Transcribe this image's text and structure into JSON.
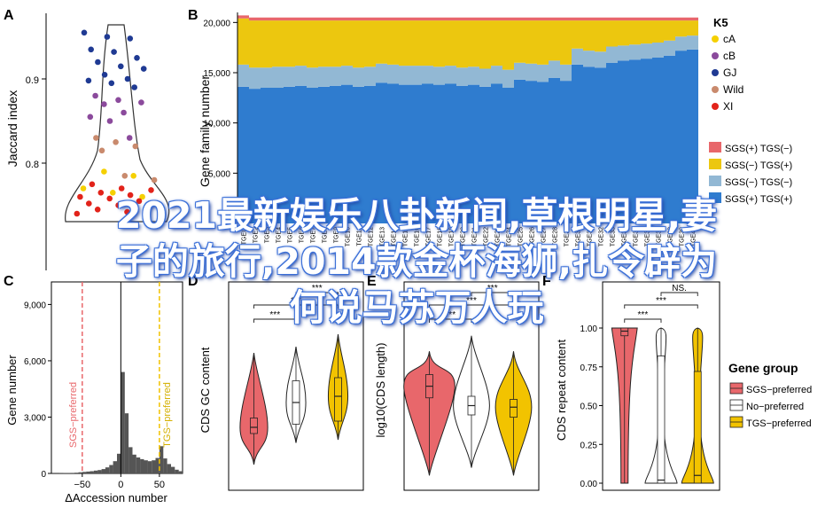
{
  "colors": {
    "blue_dark": "#1f3a93",
    "purple": "#8b4a9c",
    "yellow": "#f5d000",
    "tan": "#c98a6d",
    "red": "#e2231a",
    "sgs": "#e8676b",
    "tgs": "#f2c300",
    "area_yellow": "#ecc70f",
    "area_light": "#92b8d4",
    "area_blue": "#2f7ccf",
    "area_pink": "#e8676b",
    "hist": "#555555"
  },
  "overlay": {
    "line1": "2021最新娱乐八卦新闻,草根明星,妻",
    "line2": "子的旅行,2014款金杯海狮,扎令辟为",
    "line3": "何说马苏万人玩"
  },
  "chart_data": [
    {
      "panel": "A",
      "type": "scatter",
      "ylabel": "Jaccard index",
      "yticks": [
        "0.8",
        "0.9"
      ],
      "legend_title": "K5",
      "legend": [
        {
          "name": "cA",
          "color": "#f5d000"
        },
        {
          "name": "cB",
          "color": "#8b4a9c"
        },
        {
          "name": "GJ",
          "color": "#1f3a93"
        },
        {
          "name": "Wild",
          "color": "#c98a6d"
        },
        {
          "name": "XI",
          "color": "#e2231a"
        }
      ],
      "points": [
        {
          "y": 0.955,
          "g": "GJ"
        },
        {
          "y": 0.95,
          "g": "GJ"
        },
        {
          "y": 0.948,
          "g": "GJ"
        },
        {
          "y": 0.935,
          "g": "GJ"
        },
        {
          "y": 0.932,
          "g": "GJ"
        },
        {
          "y": 0.925,
          "g": "GJ"
        },
        {
          "y": 0.92,
          "g": "GJ"
        },
        {
          "y": 0.915,
          "g": "GJ"
        },
        {
          "y": 0.912,
          "g": "GJ"
        },
        {
          "y": 0.905,
          "g": "GJ"
        },
        {
          "y": 0.9,
          "g": "GJ"
        },
        {
          "y": 0.898,
          "g": "GJ"
        },
        {
          "y": 0.895,
          "g": "GJ"
        },
        {
          "y": 0.89,
          "g": "GJ"
        },
        {
          "y": 0.88,
          "g": "cB"
        },
        {
          "y": 0.875,
          "g": "cB"
        },
        {
          "y": 0.872,
          "g": "cB"
        },
        {
          "y": 0.87,
          "g": "cB"
        },
        {
          "y": 0.86,
          "g": "cB"
        },
        {
          "y": 0.855,
          "g": "cB"
        },
        {
          "y": 0.85,
          "g": "cB"
        },
        {
          "y": 0.83,
          "g": "cB"
        },
        {
          "y": 0.83,
          "g": "Wild"
        },
        {
          "y": 0.825,
          "g": "Wild"
        },
        {
          "y": 0.82,
          "g": "Wild"
        },
        {
          "y": 0.815,
          "g": "Wild"
        },
        {
          "y": 0.785,
          "g": "Wild"
        },
        {
          "y": 0.78,
          "g": "Wild"
        },
        {
          "y": 0.79,
          "g": "cA"
        },
        {
          "y": 0.785,
          "g": "cA"
        },
        {
          "y": 0.77,
          "g": "cA"
        },
        {
          "y": 0.765,
          "g": "cA"
        },
        {
          "y": 0.76,
          "g": "cA"
        },
        {
          "y": 0.775,
          "g": "XI"
        },
        {
          "y": 0.77,
          "g": "XI"
        },
        {
          "y": 0.768,
          "g": "XI"
        },
        {
          "y": 0.765,
          "g": "XI"
        },
        {
          "y": 0.762,
          "g": "XI"
        },
        {
          "y": 0.76,
          "g": "XI"
        },
        {
          "y": 0.758,
          "g": "XI"
        },
        {
          "y": 0.755,
          "g": "XI"
        },
        {
          "y": 0.752,
          "g": "XI"
        },
        {
          "y": 0.75,
          "g": "XI"
        },
        {
          "y": 0.748,
          "g": "XI"
        },
        {
          "y": 0.745,
          "g": "XI"
        },
        {
          "y": 0.742,
          "g": "XI"
        },
        {
          "y": 0.74,
          "g": "XI"
        }
      ]
    },
    {
      "panel": "B",
      "type": "area",
      "ylabel": "Gene family number",
      "yticks": [
        "0",
        "5,000",
        "10,000",
        "15,000",
        "20,000"
      ],
      "ylim": [
        0,
        21000
      ],
      "legend": [
        {
          "name": "SGS(+) TGS(−)",
          "color": "#e8676b"
        },
        {
          "name": "SGS(−) TGS(+)",
          "color": "#ecc70f"
        },
        {
          "name": "SGS(−) TGS(−)",
          "color": "#92b8d4"
        },
        {
          "name": "SGS(+) TGS(+)",
          "color": "#2f7ccf"
        }
      ],
      "x_labels": [
        "TGEI1",
        "TGE2",
        "TGE3",
        "TGE4",
        "TGE5",
        "TGE6",
        "TGE7",
        "TGE8",
        "TGE9",
        "TGE10",
        "TGE11",
        "TGE12",
        "TGE13",
        "TGE14",
        "TGE15",
        "TGE16",
        "TGE17",
        "TGE18",
        "TGE19",
        "TGE20",
        "TGE21",
        "TGE22",
        "TGE23",
        "TGE24",
        "TGE25",
        "TGE26",
        "TGE27",
        "TGE28",
        "TGE29",
        "TGE30",
        "TGE31",
        "TGE32",
        "TGE33",
        "TGE34",
        "TGE35",
        "TGE36",
        "TGE37",
        "TGE38",
        "TGE39",
        "TGE40"
      ],
      "series": [
        {
          "name": "SGS(+) TGS(+)",
          "values": [
            13600,
            13400,
            13500,
            13500,
            13600,
            13700,
            13500,
            13600,
            13700,
            13800,
            13600,
            13700,
            14000,
            13900,
            13800,
            13800,
            13900,
            13800,
            13900,
            13700,
            13800,
            13600,
            13900,
            13500,
            14300,
            14200,
            14100,
            14500,
            14200,
            15800,
            15600,
            15500,
            16000,
            16200,
            16300,
            16400,
            16500,
            16700,
            17200,
            17300
          ]
        },
        {
          "name": "SGS(−) TGS(−)",
          "values": [
            2200,
            2100,
            2000,
            2100,
            2000,
            2000,
            2000,
            2000,
            1900,
            1900,
            1900,
            1900,
            1900,
            1900,
            1900,
            1900,
            1800,
            1800,
            1800,
            1800,
            1800,
            1800,
            1800,
            1800,
            1700,
            1700,
            1700,
            1700,
            1600,
            1600,
            1600,
            1600,
            1600,
            1500,
            1500,
            1500,
            1500,
            1500,
            1400,
            1400
          ]
        },
        {
          "name": "SGS(−) TGS(+)",
          "values": [
            4600,
            4700,
            4700,
            4600,
            4600,
            4500,
            4700,
            4600,
            4600,
            4500,
            4700,
            4600,
            4300,
            4400,
            4500,
            4500,
            4500,
            4600,
            4500,
            4700,
            4600,
            4800,
            4500,
            4900,
            4200,
            4300,
            4400,
            4000,
            4400,
            2800,
            3000,
            3100,
            2600,
            2500,
            2400,
            2300,
            2200,
            2000,
            1600,
            1500
          ]
        },
        {
          "name": "SGS(+) TGS(−)",
          "values": [
            300,
            300,
            300,
            300,
            300,
            300,
            300,
            300,
            300,
            300,
            300,
            300,
            300,
            300,
            300,
            300,
            300,
            300,
            300,
            300,
            300,
            300,
            300,
            300,
            300,
            300,
            300,
            300,
            300,
            300,
            300,
            300,
            300,
            300,
            300,
            300,
            300,
            300,
            300,
            300
          ]
        }
      ]
    },
    {
      "panel": "C",
      "type": "bar",
      "xlabel": "ΔAccession number",
      "ylabel": "Gene number",
      "xticks": [
        "−50",
        "0",
        "50"
      ],
      "yticks": [
        "0",
        "3,000",
        "6,000",
        "9,000"
      ],
      "xlim": [
        -90,
        80
      ],
      "ylim": [
        0,
        10200
      ],
      "marker_labels": {
        "sgs": "SGS−preferred",
        "tgs": "TGS−preferred"
      },
      "markers": [
        -50,
        50
      ],
      "bins": [
        -90,
        -85,
        -80,
        -75,
        -70,
        -65,
        -60,
        -55,
        -50,
        -45,
        -40,
        -35,
        -30,
        -25,
        -20,
        -15,
        -10,
        -5,
        0,
        5,
        10,
        15,
        20,
        25,
        30,
        35,
        40,
        45,
        50,
        55,
        60,
        65,
        70,
        75
      ],
      "values": [
        10,
        10,
        15,
        20,
        20,
        30,
        40,
        60,
        80,
        100,
        120,
        150,
        180,
        230,
        320,
        450,
        650,
        1050,
        5400,
        3200,
        1400,
        1000,
        850,
        760,
        700,
        650,
        700,
        820,
        1450,
        800,
        500,
        350,
        200,
        120
      ]
    },
    {
      "panel": "D",
      "type": "violin",
      "ylabel": "CDS GC content",
      "sig": [
        "***",
        "***",
        "***"
      ],
      "groups": [
        {
          "name": "SGS−preferred",
          "color": "#e8676b",
          "median": 0.48,
          "q1": 0.46,
          "q3": 0.51,
          "min": 0.36,
          "max": 0.72
        },
        {
          "name": "No−preferred",
          "color": "#ffffff",
          "median": 0.56,
          "q1": 0.49,
          "q3": 0.63,
          "min": 0.43,
          "max": 0.74
        },
        {
          "name": "TGS−preferred",
          "color": "#f2c300",
          "median": 0.58,
          "q1": 0.5,
          "q3": 0.64,
          "min": 0.44,
          "max": 0.78
        }
      ]
    },
    {
      "panel": "E",
      "type": "violin",
      "ylabel": "log10(CDS length)",
      "sig": [
        "***",
        "***",
        "***"
      ],
      "groups": [
        {
          "name": "SGS−preferred",
          "color": "#e8676b",
          "median": 3.25,
          "q1": 3.1,
          "q3": 3.4,
          "min": 2.1,
          "max": 3.7
        },
        {
          "name": "No−preferred",
          "color": "#ffffff",
          "median": 3.0,
          "q1": 2.88,
          "q3": 3.12,
          "min": 2.2,
          "max": 3.9
        },
        {
          "name": "TGS−preferred",
          "color": "#f2c300",
          "median": 2.98,
          "q1": 2.85,
          "q3": 3.08,
          "min": 2.1,
          "max": 3.7
        }
      ]
    },
    {
      "panel": "F",
      "type": "violin",
      "ylabel": "CDS repeat content",
      "yticks": [
        "0.00",
        "0.25",
        "0.50",
        "0.75",
        "1.00"
      ],
      "ylim": [
        0,
        1.05
      ],
      "sig": [
        "***",
        "***",
        "NS."
      ],
      "legend_title": "Gene group",
      "groups": [
        {
          "name": "SGS−preferred",
          "color": "#e8676b",
          "median": 0.98,
          "q1": 0.95,
          "q3": 1.0,
          "min": 0.0,
          "max": 1.0
        },
        {
          "name": "No−preferred",
          "color": "#ffffff",
          "median": 0.02,
          "q1": 0.0,
          "q3": 0.82,
          "min": 0.0,
          "max": 1.0
        },
        {
          "name": "TGS−preferred",
          "color": "#f2c300",
          "median": 0.05,
          "q1": 0.0,
          "q3": 0.72,
          "min": 0.0,
          "max": 1.0
        }
      ]
    }
  ]
}
